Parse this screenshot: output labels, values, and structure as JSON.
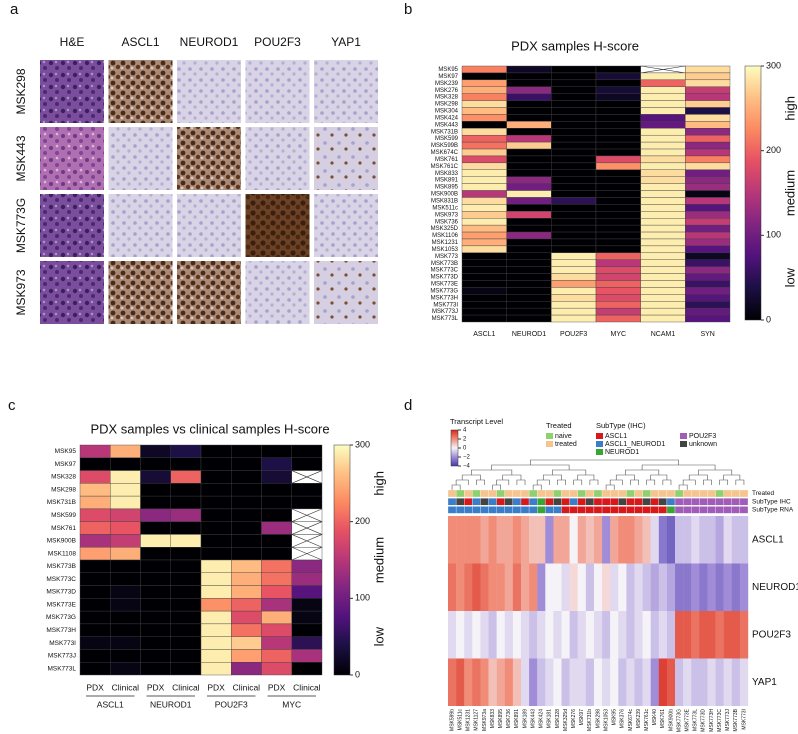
{
  "panel_a": {
    "panel_label": "a",
    "columns": [
      "H&E",
      "ASCL1",
      "NEUROD1",
      "POU2F3",
      "YAP1"
    ],
    "rows": [
      "MSK298",
      "MSK443",
      "MSK773G",
      "MSK973"
    ]
  },
  "chart_data": [
    {
      "type": "heatmap",
      "panel_label": "b",
      "title": "PDX samples H-score",
      "colormap": "magma",
      "rows": [
        "MSK95",
        "MSK97",
        "MSK239",
        "MSK276",
        "MSK328",
        "MSK298",
        "MSK304",
        "MSK424",
        "MSK443",
        "MSK731B",
        "MSK599",
        "MSK599B",
        "MSK674C",
        "MSK761",
        "MSK761C",
        "MSK833",
        "MSK891",
        "MSK895",
        "MSK900B",
        "MSK831B",
        "MSK511c",
        "MSK973",
        "MSK736",
        "MSK325D",
        "MSK1106",
        "MSK1231",
        "MSK1053",
        "MSK773",
        "MSK773B",
        "MSK773C",
        "MSK773D",
        "MSK773E",
        "MSK773G",
        "MSK773H",
        "MSK773I",
        "MSK773J",
        "MSK773L"
      ],
      "columns": [
        "ASCL1",
        "NEUROD1",
        "POU2F3",
        "MYC",
        "NCAM1",
        "SYN"
      ],
      "values": [
        [
          220,
          20,
          0,
          0,
          null,
          280
        ],
        [
          0,
          0,
          0,
          30,
          290,
          270
        ],
        [
          240,
          0,
          0,
          0,
          200,
          280
        ],
        [
          250,
          120,
          0,
          30,
          290,
          160
        ],
        [
          220,
          60,
          0,
          20,
          290,
          150
        ],
        [
          280,
          0,
          0,
          0,
          290,
          270
        ],
        [
          260,
          0,
          0,
          0,
          290,
          40
        ],
        [
          230,
          0,
          0,
          0,
          80,
          280
        ],
        [
          0,
          250,
          0,
          0,
          90,
          260
        ],
        [
          280,
          0,
          0,
          0,
          290,
          120
        ],
        [
          200,
          150,
          0,
          0,
          290,
          200
        ],
        [
          210,
          270,
          0,
          0,
          290,
          120
        ],
        [
          270,
          0,
          0,
          0,
          290,
          150
        ],
        [
          180,
          0,
          0,
          180,
          280,
          220
        ],
        [
          280,
          0,
          0,
          230,
          290,
          280
        ],
        [
          290,
          0,
          0,
          0,
          280,
          100
        ],
        [
          290,
          120,
          0,
          0,
          280,
          120
        ],
        [
          290,
          100,
          0,
          0,
          290,
          130
        ],
        [
          150,
          290,
          0,
          0,
          290,
          10
        ],
        [
          280,
          100,
          50,
          0,
          290,
          150
        ],
        [
          290,
          0,
          0,
          0,
          290,
          80
        ],
        [
          270,
          170,
          0,
          0,
          290,
          130
        ],
        [
          290,
          0,
          0,
          0,
          290,
          160
        ],
        [
          260,
          0,
          0,
          0,
          290,
          100
        ],
        [
          240,
          120,
          0,
          0,
          290,
          150
        ],
        [
          250,
          0,
          0,
          0,
          290,
          130
        ],
        [
          280,
          0,
          0,
          0,
          290,
          80
        ],
        [
          0,
          0,
          290,
          200,
          290,
          20
        ],
        [
          0,
          0,
          290,
          150,
          290,
          60
        ],
        [
          0,
          0,
          290,
          180,
          290,
          120
        ],
        [
          0,
          0,
          280,
          170,
          290,
          90
        ],
        [
          0,
          0,
          240,
          200,
          290,
          60
        ],
        [
          10,
          0,
          290,
          190,
          290,
          100
        ],
        [
          0,
          0,
          280,
          180,
          290,
          80
        ],
        [
          0,
          0,
          290,
          200,
          290,
          50
        ],
        [
          0,
          0,
          290,
          160,
          290,
          90
        ],
        [
          0,
          0,
          290,
          200,
          290,
          80
        ]
      ],
      "zlim": [
        0,
        300
      ],
      "zticks": [
        0,
        100,
        200,
        300
      ],
      "colorbar_labels": [
        "low",
        "medium",
        "high"
      ]
    },
    {
      "type": "heatmap",
      "panel_label": "c",
      "title": "PDX samples vs clinical samples H-score",
      "colormap": "magma",
      "rows": [
        "MSK95",
        "MSK97",
        "MSK328",
        "MSK298",
        "MSK731B",
        "MSK599",
        "MSK761",
        "MSK900B",
        "MSK1108",
        "MSK773B",
        "MSK773C",
        "MSK773D",
        "MSK773E",
        "MSK773G",
        "MSK773H",
        "MSK773I",
        "MSK773J",
        "MSK773L"
      ],
      "columns": [
        "PDX",
        "Clinical",
        "PDX",
        "Clinical",
        "PDX",
        "Clinical",
        "PDX",
        "Clinical"
      ],
      "groups": [
        "ASCL1",
        "NEUROD1",
        "POU2F3",
        "MYC"
      ],
      "values": [
        [
          150,
          250,
          20,
          40,
          0,
          0,
          0,
          0
        ],
        [
          0,
          0,
          0,
          0,
          0,
          0,
          40,
          0
        ],
        [
          180,
          290,
          30,
          200,
          0,
          0,
          30,
          null
        ],
        [
          260,
          290,
          0,
          0,
          0,
          0,
          0,
          0
        ],
        [
          250,
          290,
          0,
          0,
          0,
          0,
          0,
          0
        ],
        [
          180,
          170,
          120,
          130,
          0,
          0,
          0,
          null
        ],
        [
          200,
          190,
          0,
          0,
          0,
          0,
          130,
          null
        ],
        [
          140,
          160,
          290,
          290,
          0,
          0,
          0,
          null
        ],
        [
          240,
          250,
          0,
          0,
          0,
          0,
          0,
          null
        ],
        [
          0,
          0,
          0,
          0,
          290,
          260,
          210,
          120
        ],
        [
          0,
          0,
          0,
          0,
          290,
          250,
          210,
          130
        ],
        [
          0,
          10,
          0,
          0,
          290,
          250,
          190,
          80
        ],
        [
          0,
          10,
          0,
          0,
          230,
          200,
          140,
          10
        ],
        [
          0,
          0,
          0,
          0,
          290,
          180,
          250,
          10
        ],
        [
          0,
          0,
          0,
          0,
          290,
          210,
          180,
          0
        ],
        [
          10,
          10,
          0,
          0,
          290,
          270,
          150,
          50
        ],
        [
          0,
          0,
          0,
          0,
          290,
          240,
          200,
          140
        ],
        [
          0,
          10,
          0,
          0,
          290,
          120,
          180,
          0
        ]
      ],
      "zlim": [
        0,
        300
      ],
      "zticks": [
        0,
        100,
        200,
        300
      ],
      "colorbar_labels": [
        "low",
        "medium",
        "high"
      ]
    },
    {
      "type": "clustermap",
      "panel_label": "d",
      "colormap": "diverging",
      "colorbar_title": "Transcript Level",
      "zlim": [
        -4,
        4
      ],
      "zticks": [
        4,
        2,
        0,
        {
          "value": -2,
          "label": "−2"
        },
        {
          "value": -4,
          "label": "−4"
        }
      ],
      "rows": [
        "ASCL1",
        "NEUROD1",
        "POU2F3",
        "YAP1"
      ],
      "columns": [
        "MSK599b",
        "MSK511c",
        "MSK1231",
        "MSK1127",
        "MSK973a",
        "MSK833",
        "MSK895",
        "MSK736",
        "MSK891",
        "MSK189",
        "MSK443",
        "MSK424",
        "MSK181",
        "MSK328",
        "MSK325d",
        "MSK276",
        "MSK97",
        "MSK731b",
        "MSK298",
        "MSK1053",
        "MSK95",
        "MSK376",
        "MSK674c",
        "MSK239",
        "MSK761c",
        "MSK40",
        "MSK761",
        "MSK900b",
        "MSK773G",
        "MSK773E",
        "MSK773L",
        "MSK773D",
        "MSK773H",
        "MSK773C",
        "MSK773J",
        "MSK773B",
        "MSK773I"
      ],
      "values": [
        [
          2,
          2,
          2,
          2,
          1.5,
          2,
          1.5,
          1.5,
          2,
          1.5,
          1,
          1,
          -2,
          1.5,
          1.5,
          0,
          1.5,
          1,
          1.5,
          -2,
          1.5,
          2,
          2,
          1.5,
          1,
          -0.5,
          -2.5,
          -3,
          -1,
          -1,
          -0.5,
          -1,
          -1,
          -1.5,
          -0.5,
          -1,
          -1
        ],
        [
          2.5,
          2,
          2.5,
          3,
          2.5,
          2,
          2,
          1.5,
          2.5,
          1.5,
          2,
          -2,
          0,
          0,
          -0.5,
          0.5,
          0,
          -1,
          0,
          0.5,
          -0.5,
          0,
          -1,
          -0.5,
          -1,
          -1.5,
          -1,
          -1.5,
          -2.5,
          -2.5,
          -2,
          -2.5,
          -2,
          -2.5,
          -2,
          -2.5,
          -2
        ],
        [
          -0.5,
          0,
          -0.5,
          0,
          -0.5,
          -1,
          0,
          -0.5,
          0,
          -0.5,
          -1,
          -0.5,
          0,
          -0.5,
          0,
          -1,
          -0.5,
          0,
          -0.5,
          -1,
          0,
          -0.5,
          -1,
          -0.5,
          0,
          -1,
          -0.5,
          -1,
          3,
          3,
          2.5,
          3,
          3,
          2.5,
          3,
          3,
          2.5
        ],
        [
          2.5,
          3,
          2,
          2.5,
          2,
          1,
          1.5,
          2,
          1,
          -0.5,
          -2,
          -1,
          -0.5,
          0,
          -1,
          -0.5,
          -0.5,
          -1,
          0,
          -0.5,
          0,
          -1,
          -0.5,
          -1,
          -0.5,
          -2,
          3.5,
          3,
          -1,
          -0.5,
          -1,
          -1,
          -0.5,
          -1,
          -0.5,
          -1,
          -0.5
        ]
      ],
      "legend_groups": [
        {
          "title": "Treated",
          "levels": [
            {
              "name": "naive",
              "color": "#8fd16f"
            },
            {
              "name": "treated",
              "color": "#f6c48f"
            }
          ],
          "rows": [
            {
              "label": "Treated",
              "values": [
                "treated",
                "naive",
                "treated",
                "naive",
                "treated",
                "treated",
                "naive",
                "treated",
                "treated",
                "treated",
                "naive",
                "treated",
                "treated",
                "naive",
                "treated",
                "treated",
                "naive",
                "treated",
                "naive",
                "treated",
                "treated",
                "treated",
                "naive",
                "treated",
                "naive",
                "treated",
                "treated",
                "treated",
                "naive",
                "treated",
                "treated",
                "treated",
                "treated",
                "naive",
                "treated",
                "treated",
                "treated"
              ]
            }
          ]
        },
        {
          "title": "SubType (IHC)",
          "levels": [
            {
              "name": "ASCL1",
              "color": "#d7191c"
            },
            {
              "name": "ASCL1_NEUROD1",
              "color": "#3a7dc9"
            },
            {
              "name": "NEUROD1",
              "color": "#3aa537"
            },
            {
              "name": "POU2F3",
              "color": "#a05cb8"
            },
            {
              "name": "unknown",
              "color": "#444444"
            }
          ],
          "rows": [
            {
              "label": "SubType IHC",
              "values": [
                "ASCL1_NEUROD1",
                "unknown",
                "ASCL1",
                "ASCL1_NEUROD1",
                "unknown",
                "ASCL1_NEUROD1",
                "ASCL1",
                "unknown",
                "ASCL1_NEUROD1",
                "ASCL1",
                "ASCL1_NEUROD1",
                "NEUROD1",
                "ASCL1",
                "unknown",
                "ASCL1",
                "ASCL1_NEUROD1",
                "ASCL1",
                "unknown",
                "ASCL1",
                "ASCL1",
                "ASCL1",
                "unknown",
                "ASCL1",
                "ASCL1",
                "unknown",
                "ASCL1",
                "unknown",
                "ASCL1_NEUROD1",
                "POU2F3",
                "POU2F3",
                "POU2F3",
                "POU2F3",
                "POU2F3",
                "POU2F3",
                "POU2F3",
                "POU2F3",
                "POU2F3"
              ]
            },
            {
              "label": "SubType RNA",
              "values": [
                "ASCL1_NEUROD1",
                "ASCL1_NEUROD1",
                "ASCL1_NEUROD1",
                "ASCL1_NEUROD1",
                "ASCL1_NEUROD1",
                "ASCL1_NEUROD1",
                "ASCL1_NEUROD1",
                "ASCL1_NEUROD1",
                "ASCL1_NEUROD1",
                "ASCL1_NEUROD1",
                "ASCL1_NEUROD1",
                "NEUROD1",
                "ASCL1_NEUROD1",
                "ASCL1_NEUROD1",
                "ASCL1",
                "ASCL1",
                "ASCL1",
                "ASCL1",
                "ASCL1",
                "ASCL1",
                "ASCL1",
                "ASCL1",
                "ASCL1",
                "ASCL1",
                "ASCL1",
                "ASCL1",
                "ASCL1",
                "NEUROD1",
                "POU2F3",
                "POU2F3",
                "POU2F3",
                "POU2F3",
                "POU2F3",
                "POU2F3",
                "POU2F3",
                "POU2F3",
                "POU2F3"
              ]
            }
          ]
        }
      ]
    }
  ]
}
